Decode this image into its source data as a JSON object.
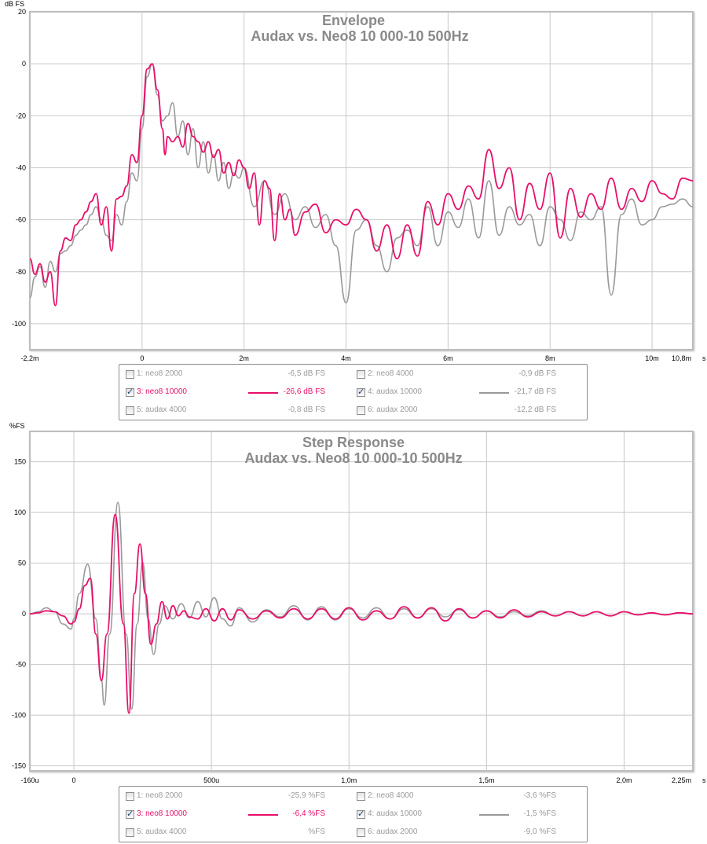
{
  "colors": {
    "pink": "#e8106a",
    "gray": "#9a9a9a",
    "inactive": "#9a9a9a",
    "grid": "#c8c8c8"
  },
  "envelope": {
    "y_unit": "dB FS",
    "x_unit": "s",
    "title": "Envelope",
    "subtitle": "Audax vs. Neo8 10 000-10 500Hz",
    "legend": [
      {
        "label": "1: neo8 2000",
        "value": "-6,5 dB FS",
        "checked": false,
        "color": "pink",
        "show_line": false
      },
      {
        "label": "2: neo8 4000",
        "value": "-0,9 dB FS",
        "checked": false,
        "color": "pink",
        "show_line": false
      },
      {
        "label": "3: neo8 10000",
        "value": "-26,6 dB FS",
        "checked": true,
        "color": "pink",
        "show_line": true
      },
      {
        "label": "4: audax 10000",
        "value": "-21,7 dB FS",
        "checked": true,
        "color": "gray",
        "show_line": true
      },
      {
        "label": "5: audax 4000",
        "value": "-0,8 dB FS",
        "checked": false,
        "color": "gray",
        "show_line": false
      },
      {
        "label": "6: audax 2000",
        "value": "-12,2 dB FS",
        "checked": false,
        "color": "gray",
        "show_line": false
      }
    ]
  },
  "step": {
    "y_unit": "%FS",
    "x_unit": "s",
    "title": "Step Response",
    "subtitle": "Audax vs. Neo8 10 000-10 500Hz",
    "legend": [
      {
        "label": "1: neo8 2000",
        "value": "-25,9 %FS",
        "checked": false,
        "color": "pink",
        "show_line": false
      },
      {
        "label": "2: neo8 4000",
        "value": "-3,6 %FS",
        "checked": false,
        "color": "pink",
        "show_line": false
      },
      {
        "label": "3: neo8 10000",
        "value": "-6,4 %FS",
        "checked": true,
        "color": "pink",
        "show_line": true
      },
      {
        "label": "4: audax 10000",
        "value": "-1,5 %FS",
        "checked": true,
        "color": "gray",
        "show_line": true
      },
      {
        "label": "5: audax 4000",
        "value": "%FS",
        "checked": false,
        "color": "gray",
        "show_line": false
      },
      {
        "label": "6: audax 2000",
        "value": "-9,0 %FS",
        "checked": false,
        "color": "gray",
        "show_line": false
      }
    ]
  },
  "chart_data": [
    {
      "type": "line",
      "title": "Envelope",
      "subtitle": "Audax vs. Neo8 10 000-10 500Hz",
      "ylabel": "dB FS",
      "xlabel": "s",
      "xlim_ms": [
        -2.2,
        10.8
      ],
      "ylim": [
        -110,
        20
      ],
      "x_ticks": [
        {
          "v": -2.2,
          "label": "-2,2m"
        },
        {
          "v": 0,
          "label": "0"
        },
        {
          "v": 2,
          "label": "2m"
        },
        {
          "v": 4,
          "label": "4m"
        },
        {
          "v": 6,
          "label": "6m"
        },
        {
          "v": 8,
          "label": "8m"
        },
        {
          "v": 10,
          "label": "10m"
        },
        {
          "v": 10.8,
          "label": "10,8m"
        }
      ],
      "x_grid": [
        0,
        2,
        4,
        6,
        8,
        10
      ],
      "y_ticks": [
        20,
        0,
        -20,
        -40,
        -60,
        -80,
        -100
      ],
      "grid": true,
      "series": [
        {
          "name": "3: neo8 10000",
          "color": "pink",
          "x": [
            -2.2,
            -2.1,
            -2.0,
            -1.9,
            -1.8,
            -1.7,
            -1.6,
            -1.5,
            -1.4,
            -1.3,
            -1.2,
            -1.1,
            -1.0,
            -0.9,
            -0.8,
            -0.7,
            -0.6,
            -0.5,
            -0.4,
            -0.3,
            -0.2,
            -0.1,
            0.0,
            0.1,
            0.2,
            0.3,
            0.4,
            0.45,
            0.5,
            0.6,
            0.7,
            0.8,
            0.9,
            1.0,
            1.1,
            1.2,
            1.3,
            1.4,
            1.5,
            1.6,
            1.7,
            1.8,
            1.9,
            2.0,
            2.1,
            2.2,
            2.3,
            2.4,
            2.5,
            2.6,
            2.7,
            2.8,
            2.9,
            3.0,
            3.2,
            3.4,
            3.6,
            3.8,
            4.0,
            4.2,
            4.4,
            4.6,
            4.8,
            5.0,
            5.2,
            5.4,
            5.6,
            5.8,
            6.0,
            6.2,
            6.4,
            6.6,
            6.8,
            7.0,
            7.2,
            7.4,
            7.6,
            7.8,
            8.0,
            8.2,
            8.4,
            8.6,
            8.8,
            9.0,
            9.2,
            9.4,
            9.6,
            9.8,
            10.0,
            10.2,
            10.4,
            10.6,
            10.8
          ],
          "y": [
            -75,
            -81,
            -77,
            -84,
            -80,
            -93,
            -72,
            -67,
            -68,
            -62,
            -60,
            -57,
            -53,
            -50,
            -62,
            -55,
            -72,
            -52,
            -51,
            -47,
            -35,
            -38,
            -20,
            -2,
            0,
            -10,
            -25,
            -35,
            -28,
            -30,
            -28,
            -32,
            -23,
            -28,
            -30,
            -34,
            -30,
            -36,
            -33,
            -42,
            -38,
            -43,
            -37,
            -40,
            -48,
            -42,
            -62,
            -45,
            -48,
            -68,
            -50,
            -60,
            -56,
            -66,
            -57,
            -54,
            -65,
            -60,
            -62,
            -56,
            -60,
            -72,
            -62,
            -75,
            -62,
            -74,
            -53,
            -62,
            -50,
            -56,
            -47,
            -52,
            -33,
            -48,
            -40,
            -60,
            -46,
            -56,
            -42,
            -67,
            -48,
            -59,
            -50,
            -56,
            -44,
            -56,
            -48,
            -53,
            -45,
            -50,
            -52,
            -44,
            -45
          ]
        },
        {
          "name": "4: audax 10000",
          "color": "gray",
          "x": [
            -2.2,
            -2.1,
            -2.0,
            -1.9,
            -1.8,
            -1.7,
            -1.6,
            -1.5,
            -1.4,
            -1.3,
            -1.2,
            -1.1,
            -1.0,
            -0.9,
            -0.8,
            -0.7,
            -0.6,
            -0.5,
            -0.4,
            -0.3,
            -0.2,
            -0.1,
            0.0,
            0.1,
            0.2,
            0.3,
            0.4,
            0.5,
            0.6,
            0.7,
            0.8,
            0.9,
            1.0,
            1.1,
            1.2,
            1.3,
            1.4,
            1.5,
            1.6,
            1.7,
            1.8,
            1.9,
            2.0,
            2.2,
            2.4,
            2.6,
            2.8,
            3.0,
            3.2,
            3.4,
            3.6,
            3.8,
            4.0,
            4.2,
            4.4,
            4.6,
            4.8,
            5.0,
            5.2,
            5.4,
            5.6,
            5.8,
            6.0,
            6.2,
            6.4,
            6.6,
            6.8,
            7.0,
            7.2,
            7.4,
            7.6,
            7.8,
            8.0,
            8.2,
            8.4,
            8.6,
            8.8,
            9.0,
            9.2,
            9.4,
            9.6,
            9.8,
            10.0,
            10.2,
            10.4,
            10.6,
            10.8
          ],
          "y": [
            -90,
            -82,
            -78,
            -86,
            -76,
            -80,
            -73,
            -72,
            -70,
            -66,
            -64,
            -62,
            -58,
            -55,
            -60,
            -66,
            -68,
            -58,
            -62,
            -53,
            -42,
            -45,
            -25,
            -5,
            0,
            -12,
            -22,
            -20,
            -15,
            -28,
            -22,
            -35,
            -25,
            -40,
            -30,
            -42,
            -35,
            -45,
            -38,
            -48,
            -42,
            -44,
            -40,
            -55,
            -45,
            -58,
            -50,
            -60,
            -55,
            -63,
            -58,
            -70,
            -92,
            -64,
            -60,
            -70,
            -80,
            -67,
            -64,
            -70,
            -55,
            -70,
            -57,
            -63,
            -52,
            -67,
            -45,
            -66,
            -55,
            -62,
            -58,
            -70,
            -55,
            -60,
            -68,
            -57,
            -60,
            -55,
            -89,
            -58,
            -52,
            -62,
            -60,
            -55,
            -54,
            -52,
            -55
          ]
        }
      ]
    },
    {
      "type": "line",
      "title": "Step Response",
      "subtitle": "Audax vs. Neo8 10 000-10 500Hz",
      "ylabel": "%FS",
      "xlabel": "s",
      "xlim_us": [
        -160,
        2250
      ],
      "ylim": [
        -155,
        180
      ],
      "x_ticks": [
        {
          "v": -160,
          "label": "-160u"
        },
        {
          "v": 0,
          "label": "0"
        },
        {
          "v": 500,
          "label": "500u"
        },
        {
          "v": 1000,
          "label": "1,0m"
        },
        {
          "v": 1500,
          "label": "1,5m"
        },
        {
          "v": 2000,
          "label": "2,0m"
        },
        {
          "v": 2250,
          "label": "2,25m"
        }
      ],
      "x_grid": [
        0,
        500,
        1000,
        1500,
        2000
      ],
      "y_ticks": [
        150,
        100,
        50,
        0,
        -50,
        -100,
        -150
      ],
      "grid": true,
      "series": [
        {
          "name": "3: neo8 10000",
          "color": "pink",
          "x": [
            -160,
            -130,
            -100,
            -70,
            -40,
            -10,
            0,
            20,
            40,
            60,
            80,
            100,
            120,
            150,
            180,
            200,
            220,
            240,
            260,
            280,
            300,
            320,
            340,
            360,
            380,
            400,
            420,
            450,
            480,
            510,
            540,
            570,
            600,
            650,
            700,
            750,
            800,
            850,
            900,
            950,
            1000,
            1050,
            1100,
            1150,
            1200,
            1250,
            1300,
            1350,
            1400,
            1450,
            1500,
            1550,
            1600,
            1650,
            1700,
            1750,
            1800,
            1850,
            1900,
            1950,
            2000,
            2050,
            2100,
            2150,
            2200,
            2250
          ],
          "y": [
            0,
            1,
            3,
            2,
            -2,
            -10,
            -8,
            5,
            28,
            35,
            -20,
            -66,
            -20,
            98,
            -10,
            -98,
            20,
            69,
            20,
            -30,
            -10,
            12,
            -5,
            8,
            -2,
            3,
            -3,
            -5,
            5,
            -7,
            5,
            -6,
            4,
            -5,
            3,
            -4,
            5,
            -5,
            5,
            -5,
            6,
            -6,
            3,
            -5,
            7,
            -4,
            6,
            -7,
            5,
            -4,
            3,
            -4,
            4,
            -3,
            2,
            -2,
            2,
            -2,
            2,
            -2,
            2,
            -1,
            1,
            -1,
            1,
            0
          ]
        },
        {
          "name": "4: audax 10000",
          "color": "gray",
          "x": [
            -160,
            -130,
            -100,
            -70,
            -40,
            -10,
            0,
            20,
            50,
            80,
            100,
            110,
            130,
            160,
            190,
            210,
            230,
            250,
            270,
            290,
            310,
            330,
            360,
            390,
            420,
            450,
            480,
            510,
            540,
            570,
            600,
            650,
            700,
            750,
            800,
            850,
            900,
            950,
            1000,
            1050,
            1100,
            1150,
            1200,
            1250,
            1300,
            1350,
            1400,
            1450,
            1500,
            1550,
            1600,
            1650,
            1700,
            1750,
            1800,
            1850,
            1900,
            1950,
            2000,
            2050,
            2100,
            2150,
            2200,
            2250
          ],
          "y": [
            0,
            2,
            6,
            2,
            -10,
            -15,
            -5,
            20,
            49,
            -5,
            -65,
            -90,
            -20,
            110,
            -20,
            -94,
            -10,
            51,
            -5,
            -40,
            -10,
            8,
            -5,
            10,
            -4,
            12,
            -3,
            16,
            -5,
            -12,
            6,
            -8,
            4,
            -3,
            8,
            -6,
            7,
            -6,
            5,
            -4,
            6,
            -5,
            5,
            -4,
            5,
            -3,
            4,
            -4,
            3,
            -3,
            2,
            -2,
            3,
            -2,
            2,
            -2,
            2,
            -2,
            2,
            -1,
            1,
            -1,
            1,
            0
          ]
        }
      ]
    }
  ]
}
